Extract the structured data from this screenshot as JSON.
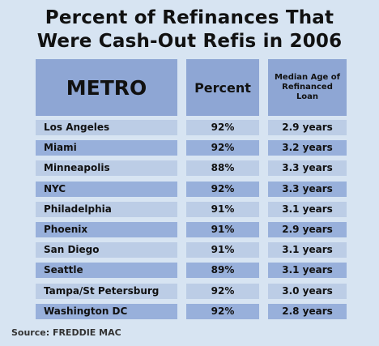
{
  "title": {
    "line1": "Percent of Refinances That",
    "line2": "Were Cash-Out Refis in 2006"
  },
  "headers": {
    "metro": "METRO",
    "percent": "Percent",
    "median_age": "Median Age of Refinanced Loan"
  },
  "source": "Source:  FREDDIE MAC",
  "colors": {
    "background": "#d7e4f2",
    "header": "#8ea6d4",
    "row_light": "#bccde6",
    "row_dark": "#98b0db"
  },
  "chart_data": {
    "type": "table",
    "columns": [
      "METRO",
      "Percent",
      "Median Age of Refinanced Loan"
    ],
    "rows": [
      [
        "Los Angeles",
        "92%",
        "2.9 years"
      ],
      [
        "Miami",
        "92%",
        "3.2 years"
      ],
      [
        "Minneapolis",
        "88%",
        "3.3 years"
      ],
      [
        "NYC",
        "92%",
        "3.3 years"
      ],
      [
        "Philadelphia",
        "91%",
        "3.1 years"
      ],
      [
        "Phoenix",
        "91%",
        "2.9 years"
      ],
      [
        "San Diego",
        "91%",
        "3.1 years"
      ],
      [
        "Seattle",
        "89%",
        "3.1 years"
      ],
      [
        "Tampa/St Petersburg",
        "92%",
        "3.0 years"
      ],
      [
        "Washington DC",
        "92%",
        "2.8 years"
      ]
    ]
  }
}
